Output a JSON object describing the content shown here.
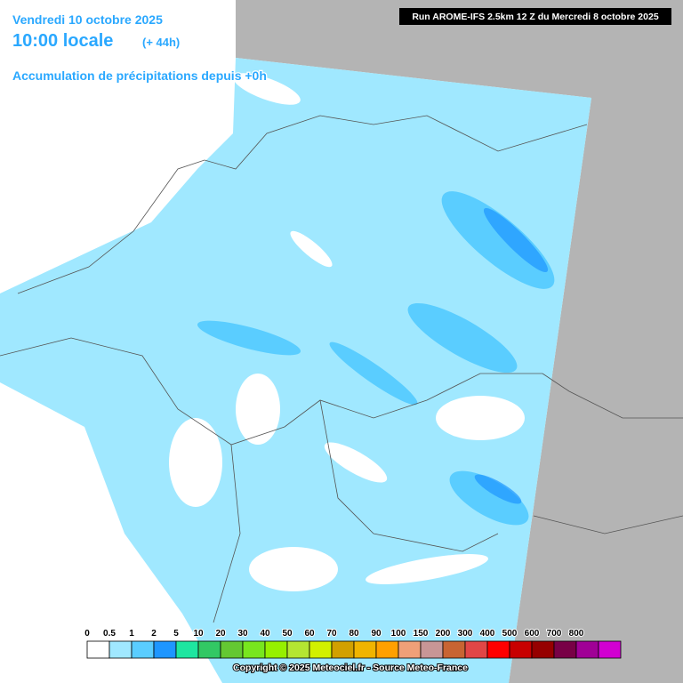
{
  "header": {
    "date": "Vendredi 10 octobre 2025",
    "time": "10:00 locale",
    "lead": "(+ 44h)",
    "product": "Accumulation de précipitations depuis +0h",
    "run": "Run AROME-IFS 2.5km 12 Z du Mercredi 8 octobre 2025"
  },
  "legend": {
    "labels": [
      0,
      0.5,
      1,
      2,
      5,
      10,
      20,
      30,
      40,
      50,
      60,
      70,
      80,
      90,
      100,
      150,
      200,
      300,
      400,
      500,
      600,
      700,
      800
    ],
    "colors": [
      "#ffffff",
      "#a0e8ff",
      "#5acdff",
      "#1e96ff",
      "#1ee6a0",
      "#32c864",
      "#64c832",
      "#78e61e",
      "#96f000",
      "#b4e632",
      "#d2f000",
      "#d2a000",
      "#f0b400",
      "#ffa000",
      "#f0a078",
      "#c89696",
      "#c86432",
      "#e14646",
      "#ff0000",
      "#c80000",
      "#960000",
      "#780046",
      "#a00096",
      "#d200d2"
    ]
  },
  "footer": {
    "copyright": "Copyright © 2025 Meteociel.fr - Source Meteo-France"
  }
}
